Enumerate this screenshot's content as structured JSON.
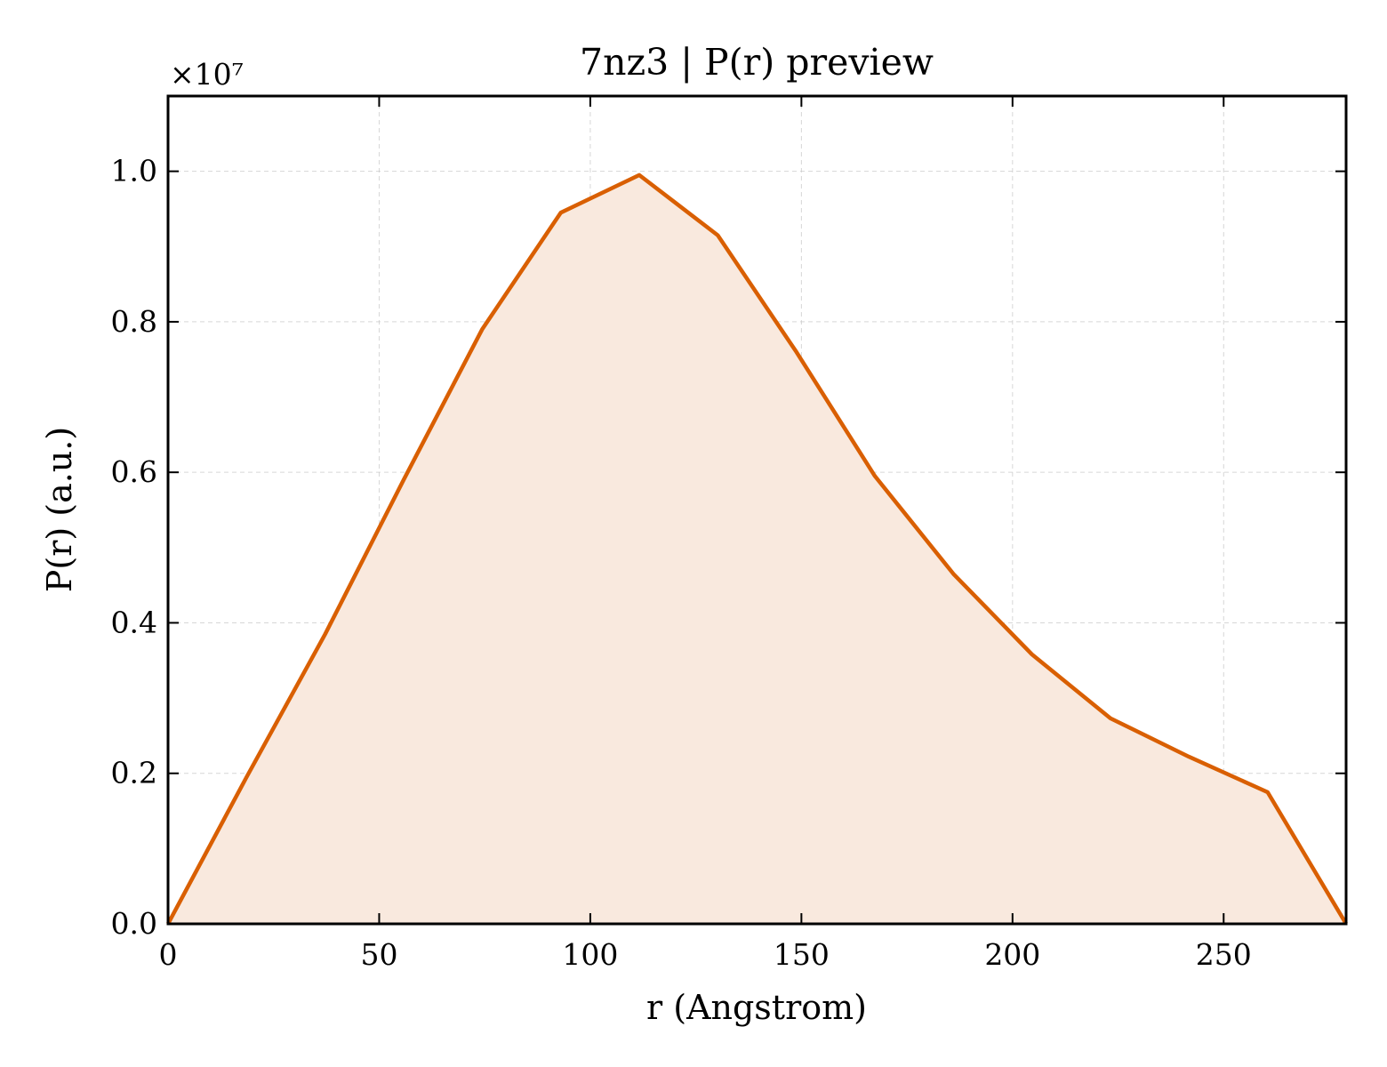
{
  "chart_data": {
    "type": "area",
    "title": "7nz3 | P(r) preview",
    "xlabel": "r (Angstrom)",
    "ylabel": "P(r) (a.u.)",
    "y_offset_label": "×10⁷",
    "xlim": [
      0,
      279
    ],
    "ylim": [
      0,
      1.1
    ],
    "x_ticks": [
      0,
      50,
      100,
      150,
      200,
      250
    ],
    "x_tick_labels": [
      "0",
      "50",
      "100",
      "150",
      "200",
      "250"
    ],
    "y_ticks": [
      0,
      0.2,
      0.4,
      0.6,
      0.8,
      1.0
    ],
    "y_tick_labels": [
      "0.0",
      "0.2",
      "0.4",
      "0.6",
      "0.8",
      "1.0"
    ],
    "grid": true,
    "line_color": "#d95f02",
    "fill_color": "#f9e9de",
    "series": [
      {
        "x": [
          0,
          18.6,
          37.2,
          55.8,
          74.4,
          93.0,
          111.6,
          130.2,
          148.8,
          167.4,
          186.0,
          204.6,
          223.2,
          241.8,
          260.4,
          279.0
        ],
        "y": [
          0.0,
          0.195,
          0.385,
          0.59,
          0.79,
          0.945,
          0.995,
          0.915,
          0.76,
          0.595,
          0.465,
          0.358,
          0.273,
          0.222,
          0.175,
          0.0
        ]
      }
    ]
  }
}
